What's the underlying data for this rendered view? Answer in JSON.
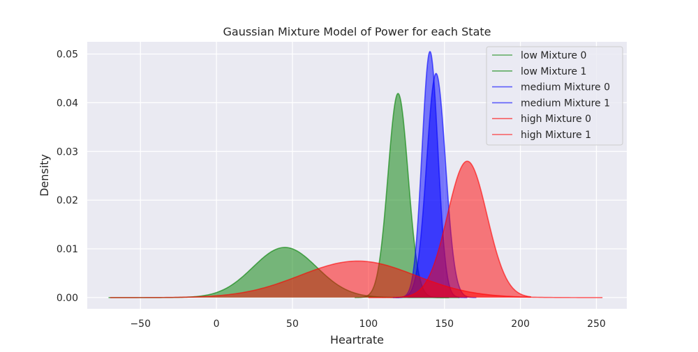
{
  "chart_data": {
    "type": "area",
    "title": "Gaussian Mixture Model of Power for each State",
    "xlabel": "Heartrate",
    "ylabel": "Density",
    "xlim": [
      -85,
      270
    ],
    "ylim": [
      -0.0023,
      0.0525
    ],
    "x_ticks": [
      -50,
      0,
      50,
      100,
      150,
      200,
      250
    ],
    "x_tick_labels": [
      "−50",
      "0",
      "50",
      "100",
      "150",
      "200",
      "250"
    ],
    "y_ticks": [
      0.0,
      0.01,
      0.02,
      0.03,
      0.04,
      0.05
    ],
    "y_tick_labels": [
      "0.00",
      "0.01",
      "0.02",
      "0.03",
      "0.04",
      "0.05"
    ],
    "grid": true,
    "legend_position": "top-right",
    "background": "#eaeaf2",
    "series": [
      {
        "name": "low Mixture 0",
        "color": "#008000",
        "mean": 45,
        "std": 21,
        "peak": 0.0103,
        "x_range": [
          -71,
          160
        ]
      },
      {
        "name": "low Mixture 1",
        "color": "#008000",
        "mean": 119.5,
        "std": 6.6,
        "peak": 0.0419,
        "x_range": [
          91,
          153
        ]
      },
      {
        "name": "medium Mixture 0",
        "color": "#0000ff",
        "mean": 140.5,
        "std": 5.2,
        "peak": 0.0505,
        "x_range": [
          118,
          165
        ]
      },
      {
        "name": "medium Mixture 1",
        "color": "#0000ff",
        "mean": 144.5,
        "std": 6.2,
        "peak": 0.046,
        "x_range": [
          116,
          171
        ]
      },
      {
        "name": "high Mixture 0",
        "color": "#ff0000",
        "mean": 93,
        "std": 38,
        "peak": 0.0075,
        "x_range": [
          -70,
          254
        ]
      },
      {
        "name": "high Mixture 1",
        "color": "#ff0000",
        "mean": 165,
        "std": 13,
        "peak": 0.028,
        "x_range": [
          100,
          207
        ]
      }
    ]
  }
}
